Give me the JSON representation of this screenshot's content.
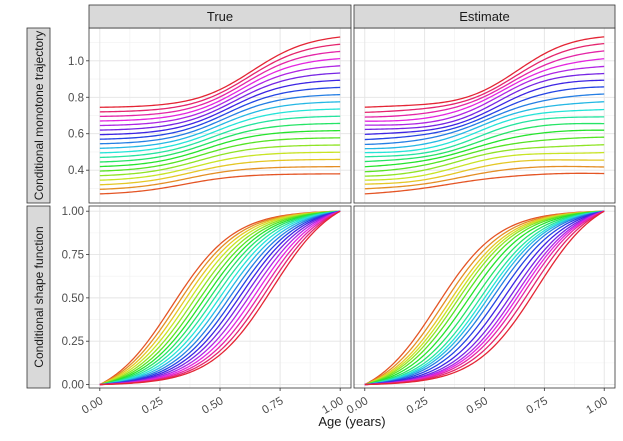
{
  "chart_data": {
    "type": "line",
    "title": "",
    "xlabel": "Age (years)",
    "x_ticks": [
      "0.00",
      "0.25",
      "0.50",
      "0.75",
      "1.00"
    ],
    "xlim": [
      0,
      1
    ],
    "facet_columns": [
      "True",
      "Estimate"
    ],
    "n_curves_per_panel": 20,
    "curve_color_order": "red (first) → orange → olive → green → teal → cyan → blue → purple → magenta (last)",
    "rows": [
      {
        "strip_label": "Conditional monotone trajectory",
        "ylim": [
          0.22,
          1.18
        ],
        "y_ticks": [
          "0.4",
          "0.6",
          "0.8",
          "1.0"
        ],
        "y_tick_values": [
          0.4,
          0.6,
          0.8,
          1.0
        ],
        "curve_start_values": {
          "first": 0.27,
          "step": 0.025
        },
        "curve_rise": {
          "first": 0.11,
          "step": 0.0145
        },
        "curve_center": {
          "first": 0.35,
          "step": 0.015
        },
        "curve_width": 0.12
      },
      {
        "strip_label": "Conditional shape function",
        "ylim": [
          -0.02,
          1.03
        ],
        "y_ticks": [
          "0.00",
          "0.25",
          "0.50",
          "0.75",
          "1.00"
        ],
        "y_tick_values": [
          0.0,
          0.25,
          0.5,
          0.75,
          1.0
        ],
        "curve_center": {
          "first": 0.3,
          "step": 0.022
        },
        "curve_width": 0.13,
        "curve_start_value": 0.0,
        "curve_end_value": 1.0
      }
    ]
  }
}
